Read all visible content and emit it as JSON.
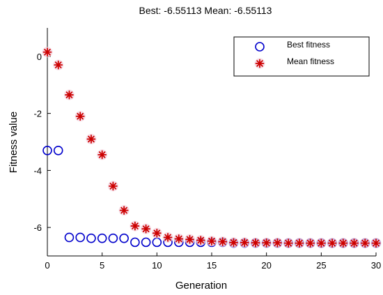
{
  "chart_data": {
    "type": "scatter",
    "title": "Best: -6.55113 Mean: -6.55113",
    "xlabel": "Generation",
    "ylabel": "Fitness value",
    "xlim": [
      0,
      30
    ],
    "ylim": [
      -7,
      1
    ],
    "xticks": [
      0,
      5,
      10,
      15,
      20,
      25,
      30
    ],
    "yticks": [
      0,
      -2,
      -4,
      -6
    ],
    "grid": false,
    "legend_position": "top-right",
    "series": [
      {
        "name": "Best fitness",
        "marker": "circle",
        "color": "#0000cc",
        "x": [
          0,
          1,
          2,
          3,
          4,
          5,
          6,
          7,
          8,
          9,
          10,
          11,
          12,
          13,
          14,
          15,
          16,
          17,
          18,
          19,
          20,
          21,
          22,
          23,
          24,
          25,
          26,
          27,
          28,
          29,
          30
        ],
        "values": [
          -3.3,
          -3.3,
          -6.35,
          -6.35,
          -6.38,
          -6.38,
          -6.38,
          -6.38,
          -6.52,
          -6.52,
          -6.52,
          -6.52,
          -6.52,
          -6.52,
          -6.52,
          -6.52,
          -6.52,
          -6.55,
          -6.55,
          -6.55,
          -6.55,
          -6.55,
          -6.55,
          -6.55,
          -6.55,
          -6.55,
          -6.55,
          -6.55,
          -6.55,
          -6.55,
          -6.55
        ]
      },
      {
        "name": "Mean fitness",
        "marker": "asterisk",
        "color": "#cc0000",
        "x": [
          0,
          1,
          2,
          3,
          4,
          5,
          6,
          7,
          8,
          9,
          10,
          11,
          12,
          13,
          14,
          15,
          16,
          17,
          18,
          19,
          20,
          21,
          22,
          23,
          24,
          25,
          26,
          27,
          28,
          29,
          30
        ],
        "values": [
          0.15,
          -0.3,
          -1.35,
          -2.1,
          -2.9,
          -3.45,
          -4.55,
          -5.4,
          -5.95,
          -6.05,
          -6.2,
          -6.35,
          -6.4,
          -6.42,
          -6.45,
          -6.48,
          -6.5,
          -6.53,
          -6.53,
          -6.54,
          -6.54,
          -6.54,
          -6.55,
          -6.55,
          -6.55,
          -6.55,
          -6.55,
          -6.55,
          -6.55,
          -6.55,
          -6.55
        ]
      }
    ]
  }
}
